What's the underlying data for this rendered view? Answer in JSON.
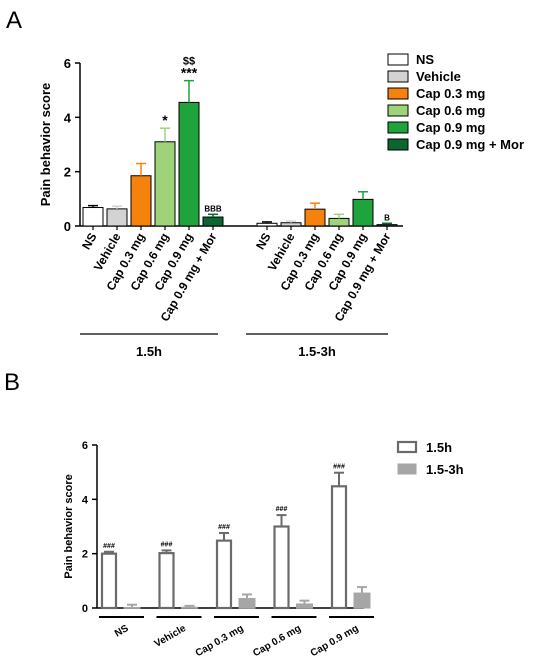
{
  "panels": {
    "a_label": "A",
    "b_label": "B"
  },
  "colors": {
    "ns": "#ffffff",
    "vehicle": "#d3d3d3",
    "cap03": "#f5820d",
    "cap06": "#9ed37a",
    "cap09": "#1fa33d",
    "cap09mor": "#0d6630",
    "outline": "#000000",
    "b_open": "#6b6b6b",
    "b_filled": "#a6a6a6"
  },
  "chart_data": [
    {
      "type": "bar",
      "ylabel": "Pain behavior score",
      "ylim": [
        0,
        6
      ],
      "yticks": [
        "0",
        "2",
        "4",
        "6"
      ],
      "categories": [
        "NS",
        "Vehicle",
        "Cap 0.3 mg",
        "Cap 0.6 mg",
        "Cap 0.9 mg",
        "Cap 0.9 mg + Mor",
        "NS",
        "Vehicle",
        "Cap 0.3 mg",
        "Cap 0.6 mg",
        "Cap 0.9 mg",
        "Cap 0.9 mg + Mor"
      ],
      "values": [
        0.68,
        0.63,
        1.85,
        3.1,
        4.55,
        0.33,
        0.1,
        0.12,
        0.62,
        0.28,
        0.98,
        0.05
      ],
      "errors": [
        0.07,
        0.1,
        0.45,
        0.5,
        0.8,
        0.1,
        0.05,
        0.06,
        0.22,
        0.15,
        0.28,
        0.05
      ],
      "color_keys": [
        "ns",
        "vehicle",
        "cap03",
        "cap06",
        "cap09",
        "cap09mor",
        "ns",
        "vehicle",
        "cap03",
        "cap06",
        "cap09",
        "cap09mor"
      ],
      "annotations": [
        "",
        "",
        "",
        "*",
        "***",
        "BBB",
        "",
        "",
        "",
        "",
        "",
        "B"
      ],
      "annotations_top": [
        "",
        "",
        "",
        "",
        "$$",
        "",
        "",
        "",
        "",
        "",
        "",
        ""
      ],
      "groups": [
        {
          "label": "1.5h"
        },
        {
          "label": "1.5-3h"
        }
      ],
      "legend": {
        "position": "right",
        "entries": [
          {
            "label": "NS",
            "color_key": "ns"
          },
          {
            "label": "Vehicle",
            "color_key": "vehicle"
          },
          {
            "label": "Cap 0.3 mg",
            "color_key": "cap03"
          },
          {
            "label": "Cap 0.6 mg",
            "color_key": "cap06"
          },
          {
            "label": "Cap 0.9 mg",
            "color_key": "cap09"
          },
          {
            "label": "Cap 0.9 mg + Mor",
            "color_key": "cap09mor"
          }
        ]
      }
    },
    {
      "type": "bar",
      "ylabel": "Pain behavior score",
      "ylim": [
        0,
        6
      ],
      "yticks": [
        "0",
        "2",
        "4",
        "6"
      ],
      "categories": [
        "NS",
        "Vehicle",
        "Cap 0.3 mg",
        "Cap 0.6 mg",
        "Cap 0.9 mg"
      ],
      "series": [
        {
          "name": "1.5h",
          "values": [
            2.0,
            2.02,
            2.48,
            3.0,
            4.48
          ],
          "errors": [
            0.07,
            0.1,
            0.28,
            0.42,
            0.5
          ],
          "annotations": [
            "###",
            "###",
            "###",
            "###",
            "###"
          ],
          "style": "open"
        },
        {
          "name": "1.5-3h",
          "values": [
            0.02,
            0.03,
            0.35,
            0.15,
            0.55
          ],
          "errors": [
            0.1,
            0.05,
            0.15,
            0.12,
            0.22
          ],
          "annotations": [
            "",
            "",
            "",
            "",
            ""
          ],
          "style": "filled"
        }
      ],
      "legend": {
        "position": "top-right"
      }
    }
  ]
}
